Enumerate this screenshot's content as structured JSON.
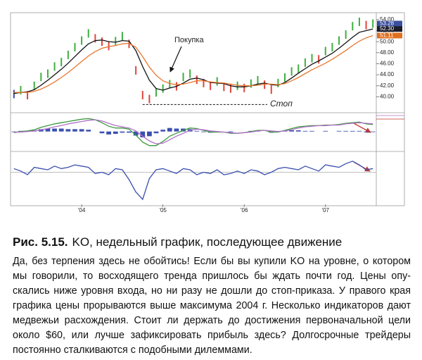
{
  "chart_data": [
    {
      "type": "price",
      "categories": [
        null,
        null,
        null,
        null,
        null,
        null,
        null,
        null,
        null,
        null,
        "'04",
        null,
        null,
        null,
        null,
        null,
        null,
        null,
        null,
        null,
        null,
        null,
        "'05",
        null,
        null,
        null,
        null,
        null,
        null,
        null,
        null,
        null,
        null,
        null,
        "'06",
        null,
        null,
        null,
        null,
        null,
        null,
        null,
        null,
        null,
        null,
        null,
        "'07",
        null,
        null,
        null,
        null,
        null,
        null,
        null
      ],
      "values": [
        40.5,
        41.2,
        40.3,
        42.0,
        43.6,
        44.2,
        45.5,
        46.3,
        47.6,
        49.0,
        50.2,
        51.5,
        50.6,
        50.0,
        49.2,
        50.1,
        51.0,
        49.6,
        44.8,
        40.3,
        39.6,
        40.8,
        41.5,
        42.3,
        41.9,
        43.6,
        44.2,
        43.1,
        42.5,
        42.0,
        42.8,
        41.8,
        41.5,
        42.0,
        41.6,
        42.4,
        43.0,
        42.2,
        41.3,
        42.5,
        43.5,
        44.6,
        45.1,
        46.2,
        47.0,
        46.8,
        48.3,
        49.0,
        50.2,
        51.3,
        52.8,
        53.6,
        53.0,
        53.28
      ],
      "up_color": "#3fae3f",
      "down_color": "#e0453a",
      "neutral_color": "#3a4fb0",
      "series": [
        {
          "color": "#111111",
          "values": [
            40.6,
            40.8,
            40.9,
            41.3,
            42.1,
            43.0,
            44.0,
            45.0,
            46.1,
            47.3,
            48.5,
            49.6,
            50.2,
            50.3,
            50.0,
            49.9,
            50.2,
            50.1,
            48.4,
            45.5,
            43.0,
            41.5,
            41.2,
            41.6,
            41.9,
            42.5,
            43.2,
            43.4,
            43.1,
            42.6,
            42.5,
            42.4,
            42.0,
            41.8,
            41.8,
            42.0,
            42.3,
            42.5,
            42.2,
            42.1,
            42.6,
            43.4,
            44.3,
            45.1,
            45.9,
            46.5,
            47.2,
            47.9,
            48.8,
            49.8,
            50.8,
            51.7,
            52.0,
            52.3
          ]
        },
        {
          "color": "#e8772e",
          "values": [
            40.8,
            40.8,
            40.8,
            41.0,
            41.4,
            42.0,
            42.7,
            43.5,
            44.4,
            45.4,
            46.4,
            47.4,
            48.2,
            48.8,
            49.1,
            49.3,
            49.6,
            49.7,
            49.0,
            47.3,
            45.4,
            43.9,
            42.9,
            42.4,
            42.2,
            42.3,
            42.6,
            42.9,
            42.9,
            42.7,
            42.6,
            42.5,
            42.3,
            42.1,
            42.0,
            42.0,
            42.1,
            42.3,
            42.3,
            42.2,
            42.4,
            42.9,
            43.5,
            44.2,
            44.9,
            45.5,
            46.1,
            46.8,
            47.6,
            48.4,
            49.3,
            50.1,
            50.7,
            51.11
          ]
        }
      ],
      "ylim": [
        37.5,
        55
      ],
      "yticks": [
        {
          "value": 40,
          "label": "40.00"
        },
        {
          "value": 42,
          "label": "42.00"
        },
        {
          "value": 44,
          "label": "44.00"
        },
        {
          "value": 46,
          "label": "46.00"
        },
        {
          "value": 48,
          "label": "48.00"
        },
        {
          "value": 50,
          "label": "50.00"
        },
        {
          "value": 52,
          "label": "52.00"
        },
        {
          "value": 54,
          "label": "54.00"
        }
      ],
      "price_labels": [
        {
          "value": 53.28,
          "color": "#3b4fa0"
        },
        {
          "value": {
            "value": 52.3,
            "label": "52.30"
          },
          "color": "#1c1c2c"
        },
        {
          "value": 51.11,
          "color": "#e07020"
        }
      ],
      "stop_level": 38.6,
      "annotations": {
        "buy": "Покупка",
        "stop": "Стоп"
      }
    },
    {
      "type": "macd",
      "ylim": [
        -2.8,
        2.6
      ],
      "values": [
        -0.1,
        0.1,
        0.1,
        0.2,
        0.4,
        0.5,
        0.5,
        0.5,
        0.4,
        0.4,
        0.4,
        0.3,
        0,
        -0.3,
        -0.5,
        -0.4,
        -0.2,
        -0.2,
        -0.7,
        -1.0,
        -0.8,
        -0.3,
        0.3,
        0.6,
        0.5,
        0.5,
        0.4,
        0.1,
        -0.1,
        -0.2,
        -0.1,
        0,
        -0.1,
        0,
        0,
        0.1,
        0.1,
        0,
        -0.2,
        -0.1,
        0.1,
        0.2,
        0.2,
        0.1,
        0.1,
        0,
        0.1,
        0,
        0.1,
        0.1,
        0.1,
        0.1,
        -0.1,
        -0.1
      ],
      "color": "#3a4fb0",
      "series": [
        {
          "color": "#3a9a3a",
          "values": [
            -0.2,
            0,
            0.1,
            0.3,
            0.7,
            1.0,
            1.3,
            1.5,
            1.7,
            1.9,
            2.1,
            2.2,
            2.0,
            1.5,
            0.9,
            0.6,
            0.6,
            0.4,
            -0.6,
            -1.8,
            -2.4,
            -2.4,
            -1.7,
            -0.8,
            -0.3,
            0.2,
            0.6,
            0.5,
            0.2,
            -0.1,
            -0.1,
            -0.1,
            -0.3,
            -0.3,
            -0.2,
            0,
            0.2,
            0.2,
            -0.1,
            -0.1,
            0.2,
            0.5,
            0.8,
            0.9,
            1.0,
            1.0,
            1.1,
            1.1,
            1.2,
            1.4,
            1.5,
            1.6,
            1.3,
            1.2
          ]
        },
        {
          "color": "#b070c8",
          "values": [
            -0.1,
            -0.1,
            0,
            0.1,
            0.3,
            0.5,
            0.8,
            1.0,
            1.3,
            1.5,
            1.7,
            1.9,
            2.0,
            1.8,
            1.4,
            1.0,
            0.8,
            0.6,
            0.1,
            -0.8,
            -1.6,
            -2.1,
            -2.0,
            -1.4,
            -0.8,
            -0.3,
            0.2,
            0.4,
            0.3,
            0.1,
            0,
            -0.1,
            -0.2,
            -0.3,
            -0.2,
            -0.1,
            0.1,
            0.2,
            0.1,
            0,
            0.1,
            0.3,
            0.6,
            0.8,
            0.9,
            1.0,
            1.0,
            1.1,
            1.1,
            1.3,
            1.4,
            1.5,
            1.4,
            1.3
          ]
        }
      ]
    },
    {
      "type": "line",
      "ylim": [
        -2.6,
        1.4
      ],
      "series": [
        {
          "color": "#3a4fb0",
          "values": [
            0.3,
            0.1,
            -0.2,
            0.4,
            0.3,
            0.2,
            0.5,
            0.3,
            0.4,
            0.6,
            0.5,
            0.4,
            -0.1,
            0,
            -0.2,
            0.3,
            0.2,
            -0.6,
            -1.6,
            -2.2,
            -0.5,
            0.2,
            0.3,
            0.1,
            -0.1,
            0.3,
            0.2,
            -0.2,
            0,
            -0.1,
            0.2,
            -0.2,
            -0.1,
            0.1,
            -0.1,
            0.2,
            0.1,
            -0.2,
            0,
            0.3,
            0.4,
            0.3,
            0.2,
            0.5,
            0.3,
            0.1,
            0.6,
            0.5,
            0.4,
            0.7,
            0.9,
            0.6,
            0.2,
            0.3
          ]
        }
      ]
    }
  ],
  "caption": {
    "label": "Рис. 5.15.",
    "text": "KO, недельный график, последующее движение"
  },
  "body": [
    "Да, без терпения здесь не обойтись! Если бы вы купили KO на уровне, о котором",
    "мы говорили, то восходящего тренда пришлось бы ждать почти год. Цены опу-",
    "скались ниже уровня входа, но ни разу не дошли до стоп-приказа. У правого края",
    "графика цены прорываются выше максимума 2004 г. Несколько индикаторов дают",
    "медвежьи расхождения. Стоит ли держать до достижения первоначальной цели",
    "около $60, или лучше зафиксировать прибыль здесь? Долгосрочные трейдеры",
    "постоянно сталкиваются с подобными дилеммами."
  ]
}
